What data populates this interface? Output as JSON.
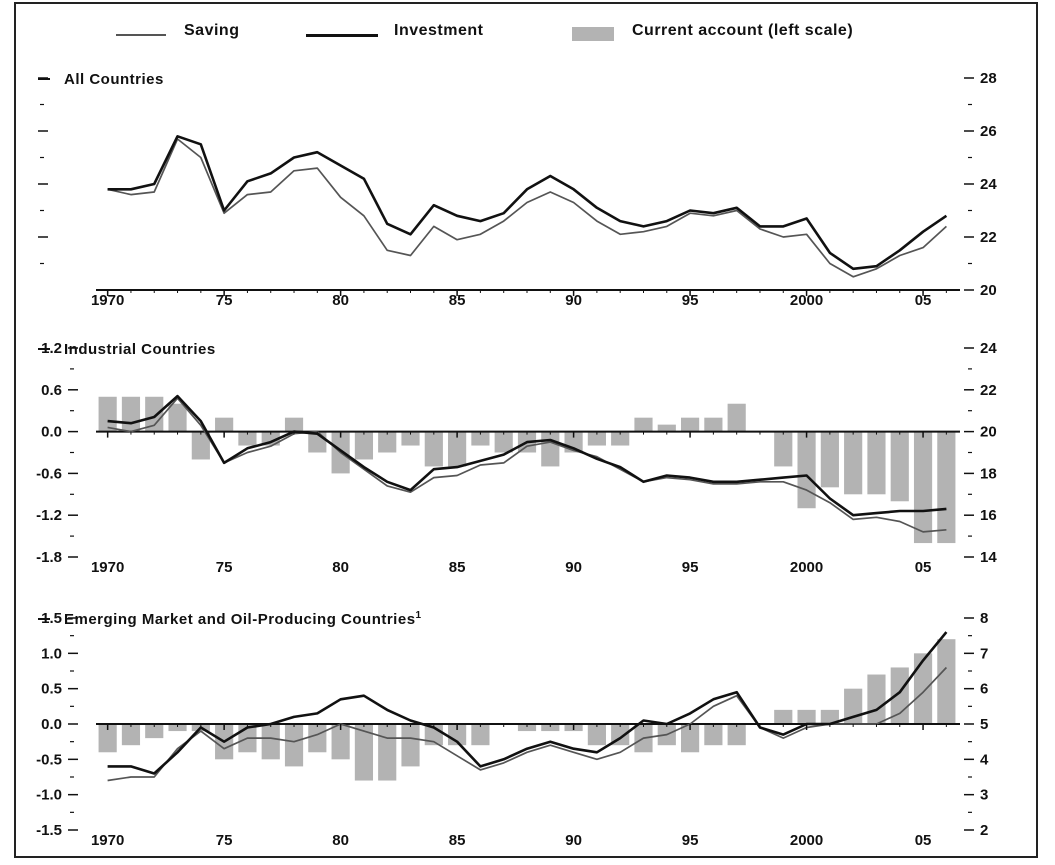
{
  "legend": {
    "saving": "Saving",
    "investment": "Investment",
    "current_account": "Current account (left scale)"
  },
  "colors": {
    "saving": "#555555",
    "investment": "#111111",
    "bars": "#b3b3b3",
    "axis": "#111111"
  },
  "chart_data": [
    {
      "type": "line",
      "title": "All Countries",
      "x": [
        1970,
        1971,
        1972,
        1973,
        1974,
        1975,
        1976,
        1977,
        1978,
        1979,
        1980,
        1981,
        1982,
        1983,
        1984,
        1985,
        1986,
        1987,
        1988,
        1989,
        1990,
        1991,
        1992,
        1993,
        1994,
        1995,
        1996,
        1997,
        1998,
        1999,
        2000,
        2001,
        2002,
        2003,
        2004,
        2005,
        2006
      ],
      "x_ticks": [
        1970,
        1975,
        1980,
        1985,
        1990,
        1995,
        2000,
        2005
      ],
      "x_tick_labels": [
        "1970",
        "75",
        "80",
        "85",
        "90",
        "95",
        "2000",
        "05"
      ],
      "right_axis": {
        "ylim": [
          20,
          28
        ],
        "ticks": [
          20,
          22,
          24,
          26,
          28
        ],
        "tick_labels": [
          "20",
          "22",
          "24",
          "26",
          "28"
        ]
      },
      "series": [
        {
          "name": "Saving",
          "axis": "right",
          "values": [
            23.8,
            23.6,
            23.7,
            25.7,
            25.0,
            22.9,
            23.6,
            23.7,
            24.5,
            24.6,
            23.5,
            22.8,
            21.5,
            21.3,
            22.4,
            21.9,
            22.1,
            22.6,
            23.3,
            23.7,
            23.3,
            22.6,
            22.1,
            22.2,
            22.4,
            22.9,
            22.8,
            23.0,
            22.3,
            22.0,
            22.1,
            21.0,
            20.5,
            20.8,
            21.3,
            21.6,
            22.4
          ]
        },
        {
          "name": "Investment",
          "axis": "right",
          "values": [
            23.8,
            23.8,
            24.0,
            25.8,
            25.5,
            23.0,
            24.1,
            24.4,
            25.0,
            25.2,
            24.7,
            24.2,
            22.5,
            22.1,
            23.2,
            22.8,
            22.6,
            22.9,
            23.8,
            24.3,
            23.8,
            23.1,
            22.6,
            22.4,
            22.6,
            23.0,
            22.9,
            23.1,
            22.4,
            22.4,
            22.7,
            21.4,
            20.8,
            20.9,
            21.5,
            22.2,
            22.8
          ]
        }
      ]
    },
    {
      "type": "bar+line",
      "title": "Industrial Countries",
      "x": [
        1970,
        1971,
        1972,
        1973,
        1974,
        1975,
        1976,
        1977,
        1978,
        1979,
        1980,
        1981,
        1982,
        1983,
        1984,
        1985,
        1986,
        1987,
        1988,
        1989,
        1990,
        1991,
        1992,
        1993,
        1994,
        1995,
        1996,
        1997,
        1998,
        1999,
        2000,
        2001,
        2002,
        2003,
        2004,
        2005,
        2006
      ],
      "x_ticks": [
        1970,
        1975,
        1980,
        1985,
        1990,
        1995,
        2000,
        2005
      ],
      "x_tick_labels": [
        "1970",
        "75",
        "80",
        "85",
        "90",
        "95",
        "2000",
        "05"
      ],
      "left_axis": {
        "ylim": [
          -1.8,
          1.2
        ],
        "ticks": [
          -1.8,
          -1.2,
          -0.6,
          0.0,
          0.6,
          1.2
        ],
        "tick_labels": [
          "-1.8",
          "-1.2",
          "-0.6",
          "0.0",
          "0.6",
          "1.2"
        ]
      },
      "right_axis": {
        "ylim": [
          14,
          24
        ],
        "ticks": [
          14,
          16,
          18,
          20,
          22,
          24
        ],
        "tick_labels": [
          "14",
          "16",
          "18",
          "20",
          "22",
          "24"
        ]
      },
      "bars": {
        "name": "Current account (left scale)",
        "values": [
          0.5,
          0.5,
          0.5,
          0.4,
          -0.4,
          0.2,
          -0.2,
          -0.2,
          0.2,
          -0.3,
          -0.6,
          -0.4,
          -0.3,
          -0.2,
          -0.5,
          -0.5,
          -0.2,
          -0.3,
          -0.3,
          -0.5,
          -0.3,
          -0.2,
          -0.2,
          0.2,
          0.1,
          0.2,
          0.2,
          0.4,
          0.0,
          -0.5,
          -1.1,
          -0.8,
          -0.9,
          -0.9,
          -1.0,
          -1.6,
          -1.6
        ]
      },
      "series": [
        {
          "name": "Saving",
          "axis": "right",
          "values": [
            20.2,
            20.0,
            20.3,
            21.6,
            20.3,
            18.5,
            19.0,
            19.3,
            19.9,
            20.0,
            19.0,
            18.2,
            17.4,
            17.1,
            17.8,
            17.9,
            18.4,
            18.5,
            19.3,
            19.5,
            19.1,
            18.8,
            18.2,
            17.6,
            17.8,
            17.7,
            17.5,
            17.5,
            17.6,
            17.6,
            17.2,
            16.6,
            15.8,
            15.9,
            15.7,
            15.2,
            15.3
          ]
        },
        {
          "name": "Investment",
          "axis": "right",
          "values": [
            20.5,
            20.4,
            20.7,
            21.7,
            20.5,
            18.5,
            19.2,
            19.5,
            20.0,
            19.9,
            19.1,
            18.3,
            17.6,
            17.2,
            18.2,
            18.3,
            18.6,
            18.9,
            19.5,
            19.6,
            19.2,
            18.7,
            18.3,
            17.6,
            17.9,
            17.8,
            17.6,
            17.6,
            17.7,
            17.8,
            17.9,
            16.8,
            16.0,
            16.1,
            16.2,
            16.2,
            16.3
          ]
        }
      ]
    },
    {
      "type": "bar+line",
      "title": "Emerging Market and Oil-Producing Countries",
      "title_footnote": "1",
      "x": [
        1970,
        1971,
        1972,
        1973,
        1974,
        1975,
        1976,
        1977,
        1978,
        1979,
        1980,
        1981,
        1982,
        1983,
        1984,
        1985,
        1986,
        1987,
        1988,
        1989,
        1990,
        1991,
        1992,
        1993,
        1994,
        1995,
        1996,
        1997,
        1998,
        1999,
        2000,
        2001,
        2002,
        2003,
        2004,
        2005,
        2006
      ],
      "x_ticks": [
        1970,
        1975,
        1980,
        1985,
        1990,
        1995,
        2000,
        2005
      ],
      "x_tick_labels": [
        "1970",
        "75",
        "80",
        "85",
        "90",
        "95",
        "2000",
        "05"
      ],
      "left_axis": {
        "ylim": [
          -1.5,
          1.5
        ],
        "ticks": [
          -1.5,
          -1.0,
          -0.5,
          0.0,
          0.5,
          1.0,
          1.5
        ],
        "tick_labels": [
          "-1.5",
          "-1.0",
          "-0.5",
          "0.0",
          "0.5",
          "1.0",
          "1.5"
        ]
      },
      "right_axis": {
        "ylim": [
          2,
          8
        ],
        "ticks": [
          2,
          3,
          4,
          5,
          6,
          7,
          8
        ],
        "tick_labels": [
          "2",
          "3",
          "4",
          "5",
          "6",
          "7",
          "8"
        ]
      },
      "bars": {
        "name": "Current account (left scale)",
        "values": [
          -0.4,
          -0.3,
          -0.2,
          -0.1,
          -0.1,
          -0.5,
          -0.4,
          -0.5,
          -0.6,
          -0.4,
          -0.5,
          -0.8,
          -0.8,
          -0.6,
          -0.3,
          -0.3,
          -0.3,
          0.0,
          -0.1,
          -0.1,
          -0.1,
          -0.3,
          -0.3,
          -0.4,
          -0.3,
          -0.4,
          -0.3,
          -0.3,
          0.0,
          0.2,
          0.2,
          0.2,
          0.5,
          0.7,
          0.8,
          1.0,
          1.2
        ]
      },
      "series": [
        {
          "name": "Saving",
          "axis": "right",
          "values": [
            3.4,
            3.5,
            3.5,
            4.3,
            4.8,
            4.3,
            4.6,
            4.6,
            4.5,
            4.7,
            5.0,
            4.8,
            4.6,
            4.6,
            4.5,
            4.1,
            3.7,
            3.9,
            4.2,
            4.4,
            4.2,
            4.0,
            4.2,
            4.6,
            4.7,
            5.0,
            5.5,
            5.8,
            4.9,
            4.6,
            4.9,
            5.0,
            5.0,
            5.0,
            5.3,
            5.9,
            6.6
          ]
        },
        {
          "name": "Investment",
          "axis": "right",
          "values": [
            3.8,
            3.8,
            3.6,
            4.2,
            4.9,
            4.5,
            4.9,
            5.0,
            5.2,
            5.3,
            5.7,
            5.8,
            5.4,
            5.1,
            4.9,
            4.5,
            3.8,
            4.0,
            4.3,
            4.5,
            4.3,
            4.2,
            4.6,
            5.1,
            5.0,
            5.3,
            5.7,
            5.9,
            4.9,
            4.7,
            5.0,
            5.0,
            5.2,
            5.4,
            5.9,
            6.8,
            7.6
          ]
        }
      ]
    }
  ]
}
